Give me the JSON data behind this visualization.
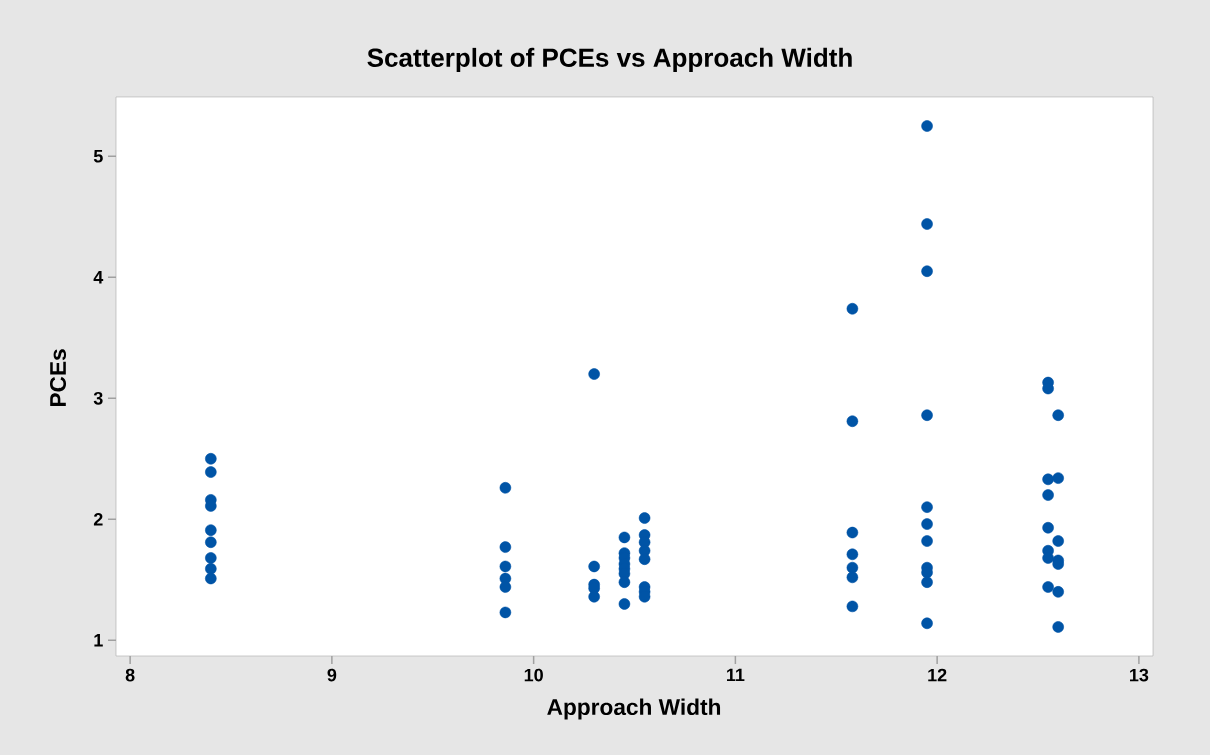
{
  "chart_data": {
    "type": "scatter",
    "title": "Scatterplot of PCEs vs Approach Width",
    "xlabel": "Approach Width",
    "ylabel": "PCEs",
    "xlim": [
      7.93,
      13.07
    ],
    "ylim": [
      0.87,
      5.49
    ],
    "xticks": [
      8,
      9,
      10,
      11,
      12,
      13
    ],
    "yticks": [
      1,
      2,
      3,
      4,
      5
    ],
    "grid": false,
    "marker": "circle",
    "series": [
      {
        "color": "#0054a6",
        "x": [
          8.4,
          8.4,
          8.4,
          8.4,
          8.4,
          8.4,
          8.4,
          8.4,
          8.4,
          9.86,
          9.86,
          9.86,
          9.86,
          9.86,
          9.86,
          10.3,
          10.3,
          10.3,
          10.3,
          10.3,
          10.45,
          10.45,
          10.45,
          10.45,
          10.45,
          10.45,
          10.45,
          10.45,
          10.55,
          10.55,
          10.55,
          10.55,
          10.55,
          10.55,
          10.55,
          10.55,
          11.58,
          11.58,
          11.58,
          11.58,
          11.58,
          11.58,
          11.58,
          11.95,
          11.95,
          11.95,
          11.95,
          11.95,
          11.95,
          11.95,
          11.95,
          11.95,
          11.95,
          11.95,
          12.55,
          12.55,
          12.55,
          12.55,
          12.55,
          12.55,
          12.55,
          12.55,
          12.6,
          12.6,
          12.6,
          12.6,
          12.6,
          12.6,
          12.6
        ],
        "values": [
          2.5,
          2.39,
          2.16,
          2.11,
          1.91,
          1.81,
          1.68,
          1.59,
          1.51,
          2.26,
          1.77,
          1.61,
          1.51,
          1.44,
          1.23,
          3.2,
          1.61,
          1.46,
          1.43,
          1.36,
          1.85,
          1.72,
          1.68,
          1.63,
          1.59,
          1.55,
          1.48,
          1.3,
          2.01,
          1.87,
          1.81,
          1.74,
          1.67,
          1.44,
          1.4,
          1.36,
          3.74,
          2.81,
          1.89,
          1.71,
          1.6,
          1.52,
          1.28,
          5.25,
          4.44,
          4.05,
          2.86,
          2.1,
          1.96,
          1.82,
          1.6,
          1.56,
          1.48,
          1.14,
          3.13,
          3.08,
          2.33,
          2.2,
          1.93,
          1.74,
          1.68,
          1.44,
          2.86,
          2.34,
          1.82,
          1.66,
          1.63,
          1.4,
          1.11
        ]
      }
    ]
  }
}
